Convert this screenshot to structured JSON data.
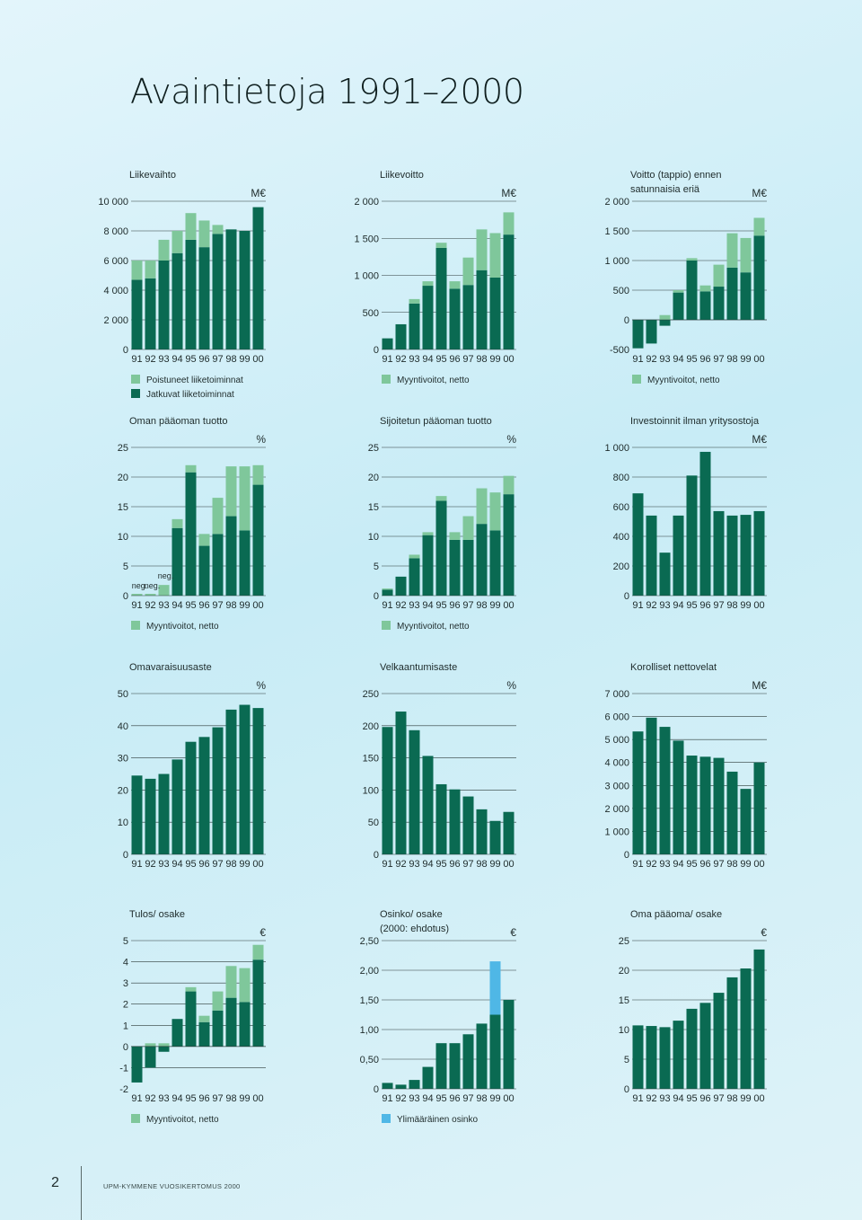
{
  "page": {
    "title": "Avaintietoja 1991–2000",
    "page_number": "2",
    "footer": "UPM-KYMMENE VUOSIKERTOMUS 2000"
  },
  "colors": {
    "dark": "#0a6a52",
    "light": "#7fc79b",
    "blue": "#4fb7e6"
  },
  "chart_data": [
    {
      "id": "liikevaihto",
      "type": "bar",
      "stacked": true,
      "title_lines": [
        "Liikevaihto"
      ],
      "unit": "M€",
      "categories": [
        "91",
        "92",
        "93",
        "94",
        "95",
        "96",
        "97",
        "98",
        "99",
        "00"
      ],
      "y_ticks": [
        0,
        2000,
        4000,
        6000,
        8000,
        10000
      ],
      "y_tick_labels": [
        "0",
        "2 000",
        "4 000",
        "6 000",
        "8 000",
        "10 000"
      ],
      "ylim": [
        0,
        10000
      ],
      "series": [
        {
          "name": "Jatkuvat liiketoiminnat",
          "color": "dark",
          "values": [
            4700,
            4800,
            6000,
            6500,
            7400,
            6900,
            7800,
            8100,
            8000,
            9600
          ]
        },
        {
          "name": "Poistuneet liiketoiminnat",
          "color": "light",
          "values": [
            1300,
            1200,
            1400,
            1500,
            1800,
            1800,
            600,
            0,
            0,
            0
          ]
        }
      ],
      "legend": [
        {
          "label": "Poistuneet liiketoiminnat",
          "color": "light"
        },
        {
          "label": "Jatkuvat liiketoiminnat",
          "color": "dark"
        }
      ]
    },
    {
      "id": "liikevoitto",
      "type": "bar",
      "stacked": true,
      "title_lines": [
        "Liikevoitto"
      ],
      "unit": "M€",
      "categories": [
        "91",
        "92",
        "93",
        "94",
        "95",
        "96",
        "97",
        "98",
        "99",
        "00"
      ],
      "y_ticks": [
        0,
        500,
        1000,
        1500,
        2000
      ],
      "y_tick_labels": [
        "0",
        "500",
        "1 000",
        "1 500",
        "2 000"
      ],
      "ylim": [
        0,
        2000
      ],
      "series": [
        {
          "name": "",
          "color": "dark",
          "values": [
            150,
            340,
            620,
            860,
            1370,
            820,
            870,
            1070,
            970,
            1550
          ]
        },
        {
          "name": "Myyntivoitot, netto",
          "color": "light",
          "values": [
            0,
            0,
            60,
            60,
            70,
            100,
            370,
            550,
            600,
            300
          ]
        }
      ],
      "legend": [
        {
          "label": "Myyntivoitot, netto",
          "color": "light"
        }
      ]
    },
    {
      "id": "voitto",
      "type": "bar",
      "stacked": true,
      "title_lines": [
        "Voitto (tappio) ennen",
        "satunnaisia eriä"
      ],
      "unit": "M€",
      "categories": [
        "91",
        "92",
        "93",
        "94",
        "95",
        "96",
        "97",
        "98",
        "99",
        "00"
      ],
      "y_ticks": [
        -500,
        0,
        500,
        1000,
        1500,
        2000
      ],
      "y_tick_labels": [
        "-500",
        "0",
        "500",
        "1 000",
        "1 500",
        "2 000"
      ],
      "ylim": [
        -500,
        2000
      ],
      "series": [
        {
          "name": "",
          "color": "dark",
          "values": [
            -480,
            -400,
            -100,
            460,
            1000,
            480,
            560,
            880,
            800,
            1420
          ]
        },
        {
          "name": "Myyntivoitot, netto",
          "color": "light",
          "values": [
            0,
            0,
            80,
            40,
            40,
            100,
            370,
            580,
            580,
            300
          ]
        }
      ],
      "legend": [
        {
          "label": "Myyntivoitot, netto",
          "color": "light"
        }
      ]
    },
    {
      "id": "oman-paaoman-tuotto",
      "type": "bar",
      "stacked": true,
      "title_lines": [
        "Oman pääoman tuotto"
      ],
      "unit": "%",
      "categories": [
        "91",
        "92",
        "93",
        "94",
        "95",
        "96",
        "97",
        "98",
        "99",
        "00"
      ],
      "y_ticks": [
        0,
        5,
        10,
        15,
        20,
        25
      ],
      "y_tick_labels": [
        "0",
        "5",
        "10",
        "15",
        "20",
        "25"
      ],
      "ylim": [
        0,
        25
      ],
      "series": [
        {
          "name": "",
          "color": "dark",
          "values": [
            0,
            0,
            0,
            11.4,
            20.8,
            8.4,
            10.4,
            13.4,
            11,
            18.7
          ]
        },
        {
          "name": "Myyntivoitot, netto",
          "color": "light",
          "values": [
            0.3,
            0.3,
            1.8,
            1.5,
            1.2,
            2,
            6.1,
            8.4,
            10.8,
            3.3
          ]
        }
      ],
      "neg_labels": [
        "neg.",
        "neg.",
        "neg."
      ],
      "legend": [
        {
          "label": "Myyntivoitot, netto",
          "color": "light"
        }
      ]
    },
    {
      "id": "sijoitetun-paaoman-tuotto",
      "type": "bar",
      "stacked": true,
      "title_lines": [
        "Sijoitetun pääoman tuotto"
      ],
      "unit": "%",
      "categories": [
        "91",
        "92",
        "93",
        "94",
        "95",
        "96",
        "97",
        "98",
        "99",
        "00"
      ],
      "y_ticks": [
        0,
        5,
        10,
        15,
        20,
        25
      ],
      "y_tick_labels": [
        "0",
        "5",
        "10",
        "15",
        "20",
        "25"
      ],
      "ylim": [
        0,
        25
      ],
      "series": [
        {
          "name": "",
          "color": "dark",
          "values": [
            1,
            3.2,
            6.3,
            10.2,
            16,
            9.4,
            9.4,
            12.1,
            11,
            17.1
          ]
        },
        {
          "name": "Myyntivoitot, netto",
          "color": "light",
          "values": [
            0.2,
            0,
            0.6,
            0.5,
            0.8,
            1.3,
            4,
            6,
            6.4,
            3.1
          ]
        }
      ],
      "legend": [
        {
          "label": "Myyntivoitot, netto",
          "color": "light"
        }
      ]
    },
    {
      "id": "investoinnit",
      "type": "bar",
      "stacked": false,
      "title_lines": [
        "Investoinnit ilman yritysostoja"
      ],
      "unit": "M€",
      "categories": [
        "91",
        "92",
        "93",
        "94",
        "95",
        "96",
        "97",
        "98",
        "99",
        "00"
      ],
      "y_ticks": [
        0,
        200,
        400,
        600,
        800,
        1000
      ],
      "y_tick_labels": [
        "0",
        "200",
        "400",
        "600",
        "800",
        "1 000"
      ],
      "ylim": [
        0,
        1000
      ],
      "series": [
        {
          "name": "",
          "color": "dark",
          "values": [
            690,
            540,
            290,
            540,
            810,
            970,
            570,
            540,
            545,
            570
          ]
        }
      ],
      "legend": []
    },
    {
      "id": "omavaraisuusaste",
      "type": "bar",
      "stacked": false,
      "title_lines": [
        "Omavaraisuusaste"
      ],
      "unit": "%",
      "categories": [
        "91",
        "92",
        "93",
        "94",
        "95",
        "96",
        "97",
        "98",
        "99",
        "00"
      ],
      "y_ticks": [
        0,
        10,
        20,
        30,
        40,
        50
      ],
      "y_tick_labels": [
        "0",
        "10",
        "20",
        "30",
        "40",
        "50"
      ],
      "ylim": [
        0,
        50
      ],
      "series": [
        {
          "name": "",
          "color": "dark",
          "values": [
            24.5,
            23.5,
            25,
            29.5,
            35,
            36.5,
            39.5,
            45,
            46.5,
            45.5
          ]
        }
      ],
      "legend": []
    },
    {
      "id": "velkaantumisaste",
      "type": "bar",
      "stacked": false,
      "title_lines": [
        "Velkaantumisaste"
      ],
      "unit": "%",
      "categories": [
        "91",
        "92",
        "93",
        "94",
        "95",
        "96",
        "97",
        "98",
        "99",
        "00"
      ],
      "y_ticks": [
        0,
        50,
        100,
        150,
        200,
        250
      ],
      "y_tick_labels": [
        "0",
        "50",
        "100",
        "150",
        "200",
        "250"
      ],
      "ylim": [
        0,
        250
      ],
      "series": [
        {
          "name": "",
          "color": "dark",
          "values": [
            198,
            222,
            193,
            153,
            109,
            101,
            90,
            70,
            52,
            66
          ]
        }
      ],
      "legend": []
    },
    {
      "id": "korolliset-nettovelat",
      "type": "bar",
      "stacked": false,
      "title_lines": [
        "Korolliset nettovelat"
      ],
      "unit": "M€",
      "categories": [
        "91",
        "92",
        "93",
        "94",
        "95",
        "96",
        "97",
        "98",
        "99",
        "00"
      ],
      "y_ticks": [
        0,
        1000,
        2000,
        3000,
        4000,
        5000,
        6000,
        7000
      ],
      "y_tick_labels": [
        "0",
        "1 000",
        "2 000",
        "3 000",
        "4 000",
        "5 000",
        "6 000",
        "7 000"
      ],
      "ylim": [
        0,
        7000
      ],
      "series": [
        {
          "name": "",
          "color": "dark",
          "values": [
            5350,
            5950,
            5550,
            4950,
            4300,
            4250,
            4200,
            3600,
            2850,
            4000
          ]
        }
      ],
      "legend": []
    },
    {
      "id": "tulos-osake",
      "type": "bar",
      "stacked": true,
      "title_lines": [
        "Tulos/ osake"
      ],
      "unit": "€",
      "categories": [
        "91",
        "92",
        "93",
        "94",
        "95",
        "96",
        "97",
        "98",
        "99",
        "00"
      ],
      "y_ticks": [
        -2,
        -1,
        0,
        1,
        2,
        3,
        4,
        5
      ],
      "y_tick_labels": [
        "-2",
        "-1",
        "0",
        "1",
        "2",
        "3",
        "4",
        "5"
      ],
      "ylim": [
        -2,
        5
      ],
      "series": [
        {
          "name": "",
          "color": "dark",
          "values": [
            -1.7,
            -1,
            -0.25,
            1.3,
            2.6,
            1.15,
            1.7,
            2.3,
            2.1,
            4.1
          ]
        },
        {
          "name": "Myyntivoitot, netto",
          "color": "light",
          "values": [
            0,
            0.15,
            0.15,
            0,
            0.2,
            0.3,
            0.9,
            1.5,
            1.6,
            0.7
          ]
        }
      ],
      "legend": [
        {
          "label": "Myyntivoitot, netto",
          "color": "light"
        }
      ]
    },
    {
      "id": "osinko-osake",
      "type": "bar",
      "stacked": true,
      "title_lines": [
        "Osinko/ osake",
        "(2000: ehdotus)"
      ],
      "unit": "€",
      "categories": [
        "91",
        "92",
        "93",
        "94",
        "95",
        "96",
        "97",
        "98",
        "99",
        "00"
      ],
      "y_ticks": [
        0,
        0.5,
        1,
        1.5,
        2,
        2.5
      ],
      "y_tick_labels": [
        "0",
        "0,50",
        "1,00",
        "1,50",
        "2,00",
        "2,50"
      ],
      "ylim": [
        0,
        2.5
      ],
      "series": [
        {
          "name": "",
          "color": "dark",
          "values": [
            0.1,
            0.07,
            0.15,
            0.37,
            0.77,
            0.77,
            0.92,
            1.1,
            1.25,
            1.5
          ]
        },
        {
          "name": "Ylimääräinen osinko",
          "color": "blue",
          "values": [
            0,
            0,
            0,
            0,
            0,
            0,
            0,
            0,
            0.9,
            0
          ]
        }
      ],
      "legend": [
        {
          "label": "Ylimääräinen osinko",
          "color": "blue"
        }
      ]
    },
    {
      "id": "oma-paaoma-osake",
      "type": "bar",
      "stacked": false,
      "title_lines": [
        "Oma pääoma/ osake"
      ],
      "unit": "€",
      "categories": [
        "91",
        "92",
        "93",
        "94",
        "95",
        "96",
        "97",
        "98",
        "99",
        "00"
      ],
      "y_ticks": [
        0,
        5,
        10,
        15,
        20,
        25
      ],
      "y_tick_labels": [
        "0",
        "5",
        "10",
        "15",
        "20",
        "25"
      ],
      "ylim": [
        0,
        25
      ],
      "series": [
        {
          "name": "",
          "color": "dark",
          "values": [
            10.7,
            10.6,
            10.4,
            11.5,
            13.5,
            14.5,
            16.2,
            18.8,
            20.3,
            23.5
          ]
        }
      ],
      "legend": []
    }
  ]
}
